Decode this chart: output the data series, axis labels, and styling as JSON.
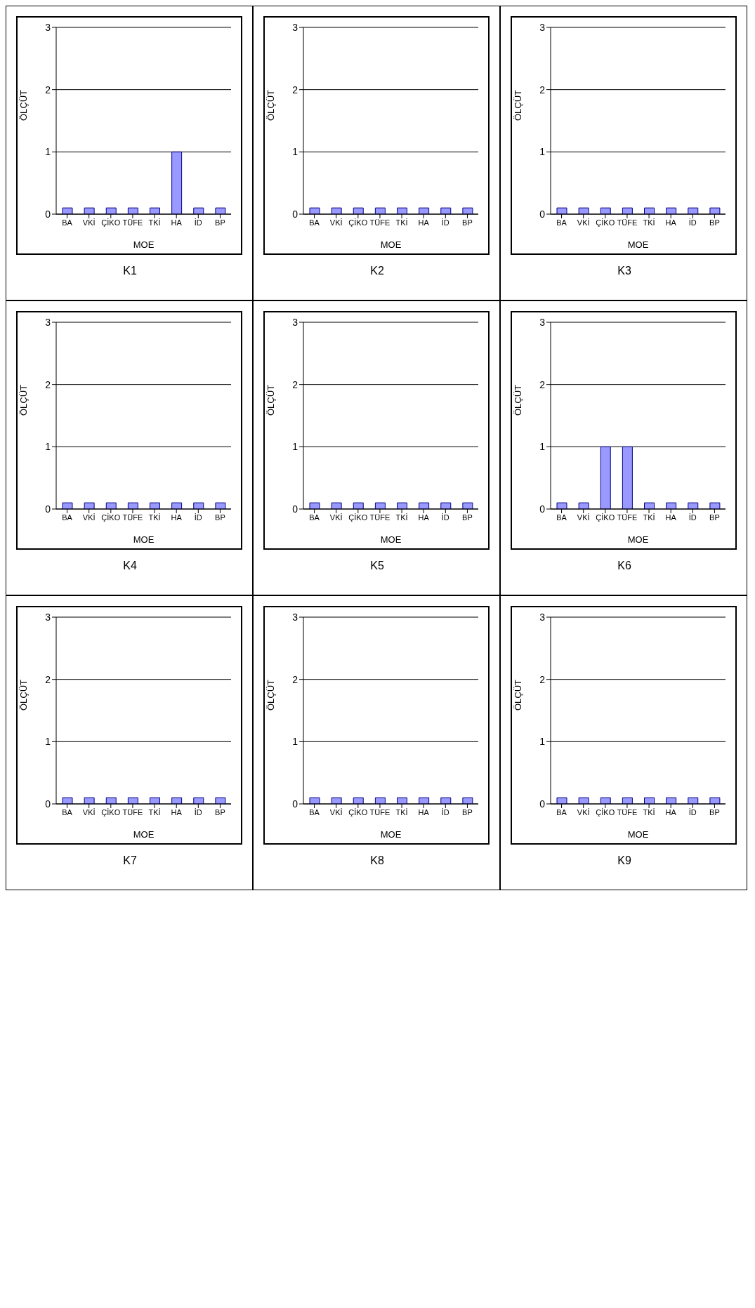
{
  "chart_data": [
    {
      "type": "bar",
      "title": "K1",
      "xlabel": "MOE",
      "ylabel": "ÖLÇÜT",
      "categories": [
        "BA",
        "VKİ",
        "ÇİKO",
        "TÜFE",
        "TKİ",
        "HA",
        "İD",
        "BP"
      ],
      "values": [
        0.1,
        0.1,
        0.1,
        0.1,
        0.1,
        1,
        0.1,
        0.1
      ],
      "color": "#9999ff",
      "ylim": [
        0,
        3
      ],
      "yticks": [
        0,
        1,
        2,
        3
      ],
      "grid": "y"
    },
    {
      "type": "bar",
      "title": "K2",
      "xlabel": "MOE",
      "ylabel": "ÖLÇÜT",
      "categories": [
        "BA",
        "VKİ",
        "ÇİKO",
        "TÜFE",
        "TKİ",
        "HA",
        "İD",
        "BP"
      ],
      "values": [
        0.1,
        0.1,
        0.1,
        0.1,
        0.1,
        0.1,
        0.1,
        0.1
      ],
      "color": "#9999ff",
      "ylim": [
        0,
        3
      ],
      "yticks": [
        0,
        1,
        2,
        3
      ],
      "grid": "y"
    },
    {
      "type": "bar",
      "title": "K3",
      "xlabel": "MOE",
      "ylabel": "ÖLÇÜT",
      "categories": [
        "BA",
        "VKİ",
        "ÇİKO",
        "TÜFE",
        "TKİ",
        "HA",
        "İD",
        "BP"
      ],
      "values": [
        0.1,
        0.1,
        0.1,
        0.1,
        0.1,
        0.1,
        0.1,
        0.1
      ],
      "color": "#9999ff",
      "ylim": [
        0,
        3
      ],
      "yticks": [
        0,
        1,
        2,
        3
      ],
      "grid": "y"
    },
    {
      "type": "bar",
      "title": "K4",
      "xlabel": "MOE",
      "ylabel": "ÖLÇÜT",
      "categories": [
        "BA",
        "VKİ",
        "ÇİKO",
        "TÜFE",
        "TKİ",
        "HA",
        "İD",
        "BP"
      ],
      "values": [
        0.1,
        0.1,
        0.1,
        0.1,
        0.1,
        0.1,
        0.1,
        0.1
      ],
      "color": "#9999ff",
      "ylim": [
        0,
        3
      ],
      "yticks": [
        0,
        1,
        2,
        3
      ],
      "grid": "y"
    },
    {
      "type": "bar",
      "title": "K5",
      "xlabel": "MOE",
      "ylabel": "ÖLÇÜT",
      "categories": [
        "BA",
        "VKİ",
        "ÇİKO",
        "TÜFE",
        "TKİ",
        "HA",
        "İD",
        "BP"
      ],
      "values": [
        0.1,
        0.1,
        0.1,
        0.1,
        0.1,
        0.1,
        0.1,
        0.1
      ],
      "color": "#9999ff",
      "ylim": [
        0,
        3
      ],
      "yticks": [
        0,
        1,
        2,
        3
      ],
      "grid": "y"
    },
    {
      "type": "bar",
      "title": "K6",
      "xlabel": "MOE",
      "ylabel": "ÖLÇÜT",
      "categories": [
        "BA",
        "VKİ",
        "ÇİKO",
        "TÜFE",
        "TKİ",
        "HA",
        "İD",
        "BP"
      ],
      "values": [
        0.1,
        0.1,
        1,
        1,
        0.1,
        0.1,
        0.1,
        0.1
      ],
      "color": "#9999ff",
      "ylim": [
        0,
        3
      ],
      "yticks": [
        0,
        1,
        2,
        3
      ],
      "grid": "y"
    },
    {
      "type": "bar",
      "title": "K7",
      "xlabel": "MOE",
      "ylabel": "ÖLÇÜT",
      "categories": [
        "BA",
        "VKİ",
        "ÇİKO",
        "TÜFE",
        "TKİ",
        "HA",
        "İD",
        "BP"
      ],
      "values": [
        0.1,
        0.1,
        0.1,
        0.1,
        0.1,
        0.1,
        0.1,
        0.1
      ],
      "color": "#9999ff",
      "ylim": [
        0,
        3
      ],
      "yticks": [
        0,
        1,
        2,
        3
      ],
      "grid": "y"
    },
    {
      "type": "bar",
      "title": "K8",
      "xlabel": "MOE",
      "ylabel": "ÖLÇÜT",
      "categories": [
        "BA",
        "VKİ",
        "ÇİKO",
        "TÜFE",
        "TKİ",
        "HA",
        "İD",
        "BP"
      ],
      "values": [
        0.1,
        0.1,
        0.1,
        0.1,
        0.1,
        0.1,
        0.1,
        0.1
      ],
      "color": "#9999ff",
      "ylim": [
        0,
        3
      ],
      "yticks": [
        0,
        1,
        2,
        3
      ],
      "grid": "y"
    },
    {
      "type": "bar",
      "title": "K9",
      "xlabel": "MOE",
      "ylabel": "ÖLÇÜT",
      "categories": [
        "BA",
        "VKİ",
        "ÇİKO",
        "TÜFE",
        "TKİ",
        "HA",
        "İD",
        "BP"
      ],
      "values": [
        0.1,
        0.1,
        0.1,
        0.1,
        0.1,
        0.1,
        0.1,
        0.1
      ],
      "color": "#9999ff",
      "ylim": [
        0,
        3
      ],
      "yticks": [
        0,
        1,
        2,
        3
      ],
      "grid": "y"
    }
  ]
}
